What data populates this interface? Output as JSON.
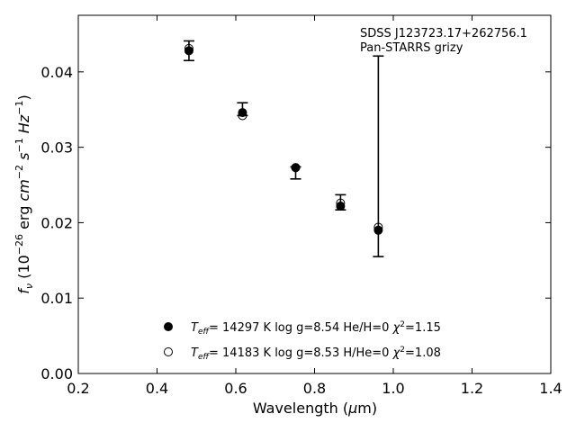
{
  "chart_data": {
    "type": "scatter",
    "title": "",
    "annotations": [
      "SDSS J123723.17+262756.1",
      "Pan-STARRS grizy"
    ],
    "xlabel": "Wavelength (μm)",
    "ylabel": "f_ν (10^-26 erg cm^-2 s^-1 Hz^-1)",
    "xlim": [
      0.2,
      1.4
    ],
    "ylim": [
      0.0,
      0.0475
    ],
    "xticks": [
      "0.2",
      "0.4",
      "0.6",
      "0.8",
      "1.0",
      "1.2",
      "1.4"
    ],
    "yticks": [
      "0.00",
      "0.01",
      "0.02",
      "0.03",
      "0.04"
    ],
    "grid": false,
    "legend_placement": "lower-center",
    "observed": {
      "x": [
        0.481,
        0.617,
        0.752,
        0.866,
        0.962
      ],
      "y": [
        0.0428,
        0.035,
        0.0268,
        0.0227,
        0.0189
      ],
      "yerr_low": [
        0.0013,
        0.0008,
        0.001,
        0.001,
        0.0034
      ],
      "yerr_high": [
        0.0013,
        0.0009,
        0.0006,
        0.001,
        0.0232
      ]
    },
    "series": [
      {
        "marker": "filled",
        "legend": {
          "teff_value": "= 14297 K",
          "params": "log g=8.54  He/H=0",
          "chi2": "=1.15"
        },
        "x": [
          0.481,
          0.617,
          0.752,
          0.866,
          0.962
        ],
        "y": [
          0.0428,
          0.0346,
          0.0273,
          0.0222,
          0.019
        ]
      },
      {
        "marker": "open",
        "legend": {
          "teff_value": "= 14183 K",
          "params": "log g=8.53  H/He=0",
          "chi2": "=1.08"
        },
        "x": [
          0.481,
          0.617,
          0.752,
          0.866,
          0.962
        ],
        "y": [
          0.0431,
          0.0342,
          0.0273,
          0.0226,
          0.0194
        ]
      }
    ],
    "colors": {
      "markers": "#000000",
      "background": "#ffffff"
    }
  }
}
